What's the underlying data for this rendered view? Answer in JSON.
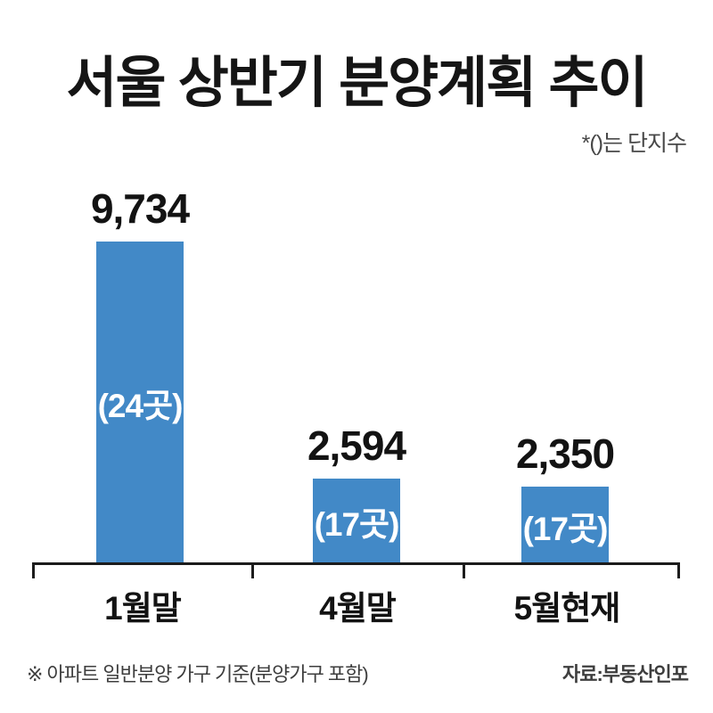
{
  "header": {
    "title": "서울 상반기 분양계획 추이",
    "unit_note": "*()는 단지수"
  },
  "footer": {
    "note": "※ 아파트 일반분양 가구 기준(분양가구 포함)",
    "source": "자료:부동산인포"
  },
  "colors": {
    "bar": "#4289C7",
    "axis": "#1C1C1C",
    "title_text": "#151515",
    "inner_label": "#FFFFFF",
    "muted_text": "#3E3E3E"
  },
  "chart_data": {
    "type": "bar",
    "title": "서울 상반기 분양계획 추이",
    "unit_note": "*()는 단지수",
    "categories": [
      "1월말",
      "4월말",
      "5월현재"
    ],
    "values": [
      9734,
      2594,
      2350
    ],
    "value_labels": [
      "9,734",
      "2,594",
      "2,350"
    ],
    "complex_counts": [
      "(24곳)",
      "(17곳)",
      "(17곳)"
    ],
    "ylim": [
      0,
      9734
    ],
    "grid": false,
    "legend": false,
    "bar_color": "#4289C7",
    "footnote": "※ 아파트 일반분양 가구 기준(분양가구 포함)",
    "source": "자료:부동산인포"
  }
}
